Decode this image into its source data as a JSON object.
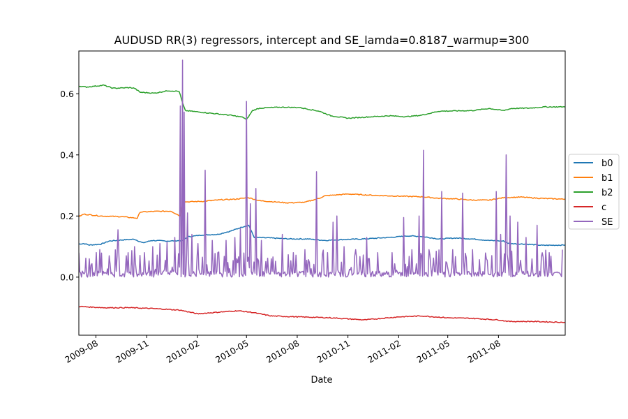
{
  "chart_data": {
    "type": "line",
    "title": "AUDUSD RR(3) regressors, intercept and SE_lamda=0.8187_warmup=300",
    "xlabel": "Date",
    "ylabel": "",
    "x_range": [
      "2009-07-01",
      "2011-11-30"
    ],
    "ylim": [
      -0.19,
      0.74
    ],
    "x_ticks": [
      {
        "date": "2009-08-01",
        "label": "2009-08"
      },
      {
        "date": "2009-11-01",
        "label": "2009-11"
      },
      {
        "date": "2010-02-01",
        "label": "2010-02"
      },
      {
        "date": "2010-05-01",
        "label": "2010-05"
      },
      {
        "date": "2010-08-01",
        "label": "2010-08"
      },
      {
        "date": "2010-11-01",
        "label": "2010-11"
      },
      {
        "date": "2011-02-01",
        "label": "2011-02"
      },
      {
        "date": "2011-05-01",
        "label": "2011-05"
      },
      {
        "date": "2011-08-01",
        "label": "2011-08"
      }
    ],
    "y_ticks": [
      {
        "value": 0.0,
        "label": "0.0"
      },
      {
        "value": 0.2,
        "label": "0.2"
      },
      {
        "value": 0.4,
        "label": "0.4"
      },
      {
        "value": 0.6,
        "label": "0.6"
      }
    ],
    "grid": false,
    "legend_position": "right",
    "series": [
      {
        "name": "b0",
        "color": "#1f77b4",
        "points": [
          [
            "2009-07-01",
            0.108
          ],
          [
            "2009-07-10",
            0.11
          ],
          [
            "2009-07-20",
            0.105
          ],
          [
            "2009-08-10",
            0.108
          ],
          [
            "2009-08-25",
            0.118
          ],
          [
            "2009-09-20",
            0.122
          ],
          [
            "2009-10-10",
            0.124
          ],
          [
            "2009-10-25",
            0.112
          ],
          [
            "2009-11-10",
            0.12
          ],
          [
            "2009-12-10",
            0.118
          ],
          [
            "2010-01-05",
            0.12
          ],
          [
            "2010-01-15",
            0.132
          ],
          [
            "2010-02-10",
            0.138
          ],
          [
            "2010-03-10",
            0.14
          ],
          [
            "2010-04-01",
            0.15
          ],
          [
            "2010-04-25",
            0.165
          ],
          [
            "2010-05-05",
            0.17
          ],
          [
            "2010-05-15",
            0.13
          ],
          [
            "2010-06-15",
            0.128
          ],
          [
            "2010-07-20",
            0.125
          ],
          [
            "2010-08-20",
            0.125
          ],
          [
            "2010-09-20",
            0.12
          ],
          [
            "2010-10-20",
            0.123
          ],
          [
            "2010-12-01",
            0.125
          ],
          [
            "2011-01-15",
            0.13
          ],
          [
            "2011-02-20",
            0.135
          ],
          [
            "2011-03-15",
            0.133
          ],
          [
            "2011-04-15",
            0.125
          ],
          [
            "2011-05-15",
            0.128
          ],
          [
            "2011-06-15",
            0.125
          ],
          [
            "2011-07-15",
            0.12
          ],
          [
            "2011-08-10",
            0.118
          ],
          [
            "2011-08-20",
            0.11
          ],
          [
            "2011-09-20",
            0.108
          ],
          [
            "2011-10-20",
            0.104
          ],
          [
            "2011-11-30",
            0.105
          ]
        ]
      },
      {
        "name": "b1",
        "color": "#ff7f0e",
        "points": [
          [
            "2009-07-01",
            0.198
          ],
          [
            "2009-07-10",
            0.206
          ],
          [
            "2009-08-10",
            0.2
          ],
          [
            "2009-09-15",
            0.198
          ],
          [
            "2009-10-15",
            0.193
          ],
          [
            "2009-10-20",
            0.213
          ],
          [
            "2009-11-15",
            0.215
          ],
          [
            "2009-12-15",
            0.216
          ],
          [
            "2010-01-01",
            0.2
          ],
          [
            "2010-01-05",
            0.246
          ],
          [
            "2010-02-10",
            0.248
          ],
          [
            "2010-03-15",
            0.253
          ],
          [
            "2010-04-10",
            0.255
          ],
          [
            "2010-05-05",
            0.26
          ],
          [
            "2010-05-25",
            0.25
          ],
          [
            "2010-07-15",
            0.243
          ],
          [
            "2010-08-15",
            0.245
          ],
          [
            "2010-09-10",
            0.258
          ],
          [
            "2010-09-20",
            0.266
          ],
          [
            "2010-11-01",
            0.272
          ],
          [
            "2010-12-15",
            0.268
          ],
          [
            "2011-02-01",
            0.265
          ],
          [
            "2011-03-15",
            0.263
          ],
          [
            "2011-04-15",
            0.258
          ],
          [
            "2011-05-15",
            0.256
          ],
          [
            "2011-06-15",
            0.252
          ],
          [
            "2011-07-15",
            0.252
          ],
          [
            "2011-08-10",
            0.26
          ],
          [
            "2011-09-10",
            0.262
          ],
          [
            "2011-10-15",
            0.258
          ],
          [
            "2011-11-30",
            0.255
          ]
        ]
      },
      {
        "name": "b2",
        "color": "#2ca02c",
        "points": [
          [
            "2009-07-01",
            0.625
          ],
          [
            "2009-07-15",
            0.622
          ],
          [
            "2009-08-15",
            0.628
          ],
          [
            "2009-09-01",
            0.618
          ],
          [
            "2009-10-01",
            0.62
          ],
          [
            "2009-10-10",
            0.618
          ],
          [
            "2009-10-20",
            0.605
          ],
          [
            "2009-11-15",
            0.602
          ],
          [
            "2009-12-10",
            0.61
          ],
          [
            "2009-12-30",
            0.608
          ],
          [
            "2010-01-05",
            0.57
          ],
          [
            "2010-01-10",
            0.545
          ],
          [
            "2010-02-05",
            0.54
          ],
          [
            "2010-03-05",
            0.535
          ],
          [
            "2010-04-01",
            0.53
          ],
          [
            "2010-04-25",
            0.523
          ],
          [
            "2010-05-01",
            0.515
          ],
          [
            "2010-05-12",
            0.545
          ],
          [
            "2010-05-25",
            0.553
          ],
          [
            "2010-07-01",
            0.556
          ],
          [
            "2010-08-05",
            0.555
          ],
          [
            "2010-09-10",
            0.543
          ],
          [
            "2010-10-01",
            0.528
          ],
          [
            "2010-11-01",
            0.52
          ],
          [
            "2010-12-15",
            0.525
          ],
          [
            "2011-01-15",
            0.528
          ],
          [
            "2011-02-15",
            0.525
          ],
          [
            "2011-03-15",
            0.53
          ],
          [
            "2011-04-15",
            0.543
          ],
          [
            "2011-05-15",
            0.544
          ],
          [
            "2011-06-15",
            0.545
          ],
          [
            "2011-07-15",
            0.552
          ],
          [
            "2011-08-10",
            0.545
          ],
          [
            "2011-08-25",
            0.552
          ],
          [
            "2011-09-25",
            0.553
          ],
          [
            "2011-10-25",
            0.557
          ],
          [
            "2011-11-30",
            0.557
          ]
        ]
      },
      {
        "name": "c",
        "color": "#d62728",
        "points": [
          [
            "2009-07-01",
            -0.096
          ],
          [
            "2009-08-15",
            -0.1
          ],
          [
            "2009-10-01",
            -0.1
          ],
          [
            "2009-11-15",
            -0.103
          ],
          [
            "2010-01-01",
            -0.108
          ],
          [
            "2010-02-01",
            -0.12
          ],
          [
            "2010-03-01",
            -0.116
          ],
          [
            "2010-04-15",
            -0.11
          ],
          [
            "2010-05-10",
            -0.115
          ],
          [
            "2010-06-15",
            -0.127
          ],
          [
            "2010-08-01",
            -0.13
          ],
          [
            "2010-10-01",
            -0.133
          ],
          [
            "2010-12-01",
            -0.14
          ],
          [
            "2011-02-01",
            -0.13
          ],
          [
            "2011-03-15",
            -0.127
          ],
          [
            "2011-05-01",
            -0.133
          ],
          [
            "2011-06-15",
            -0.135
          ],
          [
            "2011-08-01",
            -0.14
          ],
          [
            "2011-08-20",
            -0.145
          ],
          [
            "2011-10-01",
            -0.145
          ],
          [
            "2011-11-30",
            -0.148
          ]
        ]
      },
      {
        "name": "SE",
        "color": "#9467bd",
        "baseline": 0.02,
        "peaks": [
          [
            "2009-07-01",
            0.08
          ],
          [
            "2009-07-20",
            0.06
          ],
          [
            "2009-08-08",
            0.09
          ],
          [
            "2009-08-25",
            0.07
          ],
          [
            "2009-09-10",
            0.155
          ],
          [
            "2009-09-25",
            0.07
          ],
          [
            "2009-10-10",
            0.1
          ],
          [
            "2009-10-28",
            0.08
          ],
          [
            "2009-11-12",
            0.1
          ],
          [
            "2009-11-25",
            0.11
          ],
          [
            "2009-12-08",
            0.115
          ],
          [
            "2009-12-22",
            0.13
          ],
          [
            "2010-01-01",
            0.56
          ],
          [
            "2010-01-05",
            0.71
          ],
          [
            "2010-01-08",
            0.54
          ],
          [
            "2010-01-14",
            0.21
          ],
          [
            "2010-01-22",
            0.14
          ],
          [
            "2010-02-02",
            0.11
          ],
          [
            "2010-02-15",
            0.35
          ],
          [
            "2010-02-28",
            0.12
          ],
          [
            "2010-03-10",
            0.08
          ],
          [
            "2010-03-25",
            0.12
          ],
          [
            "2010-04-10",
            0.13
          ],
          [
            "2010-04-20",
            0.16
          ],
          [
            "2010-05-01",
            0.575
          ],
          [
            "2010-05-08",
            0.24
          ],
          [
            "2010-05-18",
            0.29
          ],
          [
            "2010-05-28",
            0.12
          ],
          [
            "2010-06-15",
            0.06
          ],
          [
            "2010-07-05",
            0.14
          ],
          [
            "2010-07-25",
            0.08
          ],
          [
            "2010-08-15",
            0.09
          ],
          [
            "2010-09-05",
            0.345
          ],
          [
            "2010-09-25",
            0.08
          ],
          [
            "2010-10-05",
            0.18
          ],
          [
            "2010-10-12",
            0.2
          ],
          [
            "2010-10-25",
            0.1
          ],
          [
            "2010-11-15",
            0.09
          ],
          [
            "2010-12-05",
            0.13
          ],
          [
            "2010-12-25",
            0.08
          ],
          [
            "2011-01-20",
            0.08
          ],
          [
            "2011-02-10",
            0.195
          ],
          [
            "2011-02-25",
            0.09
          ],
          [
            "2011-03-10",
            0.2
          ],
          [
            "2011-03-18",
            0.415
          ],
          [
            "2011-03-28",
            0.09
          ],
          [
            "2011-04-20",
            0.28
          ],
          [
            "2011-05-10",
            0.09
          ],
          [
            "2011-05-28",
            0.275
          ],
          [
            "2011-06-15",
            0.09
          ],
          [
            "2011-07-10",
            0.06
          ],
          [
            "2011-07-28",
            0.28
          ],
          [
            "2011-08-05",
            0.14
          ],
          [
            "2011-08-15",
            0.4
          ],
          [
            "2011-08-22",
            0.2
          ],
          [
            "2011-09-05",
            0.18
          ],
          [
            "2011-09-20",
            0.13
          ],
          [
            "2011-10-10",
            0.17
          ],
          [
            "2011-11-01",
            0.08
          ],
          [
            "2011-11-25",
            0.09
          ]
        ]
      }
    ]
  }
}
